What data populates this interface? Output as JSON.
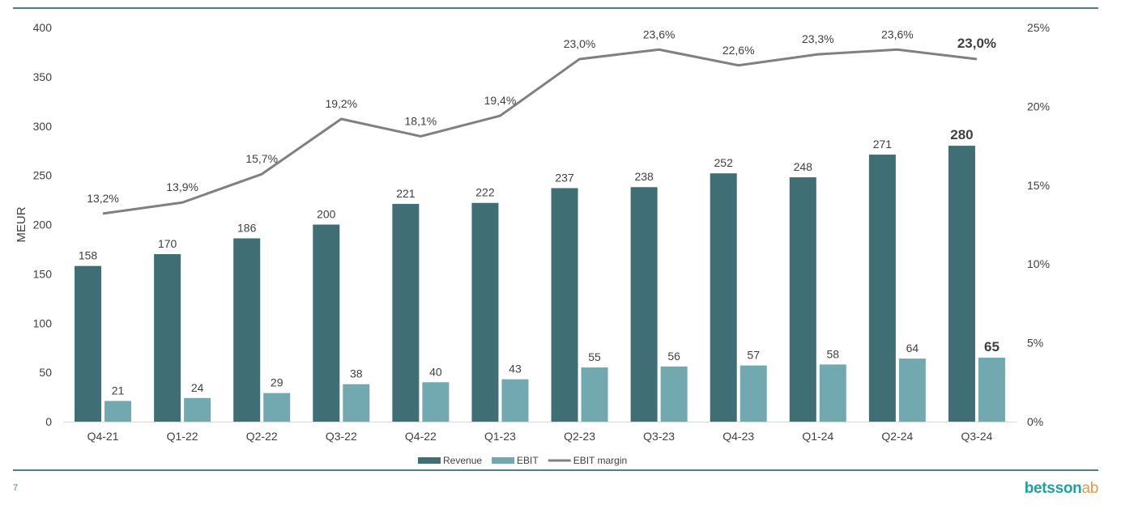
{
  "colors": {
    "revenue": "#3f6e74",
    "ebit": "#72a9b0",
    "margin": "#808080",
    "rule": "#4f7f85",
    "text": "#404040"
  },
  "page": {
    "number": "7"
  },
  "logo": {
    "word": "betsson",
    "suffix": "ab"
  },
  "chart_data": {
    "type": "bar",
    "categories": [
      "Q4-21",
      "Q1-22",
      "Q2-22",
      "Q3-22",
      "Q4-22",
      "Q1-23",
      "Q2-23",
      "Q3-23",
      "Q4-23",
      "Q1-24",
      "Q2-24",
      "Q3-24"
    ],
    "series": [
      {
        "name": "Revenue",
        "type": "bar",
        "axis": "left",
        "values": [
          158,
          170,
          186,
          200,
          221,
          222,
          237,
          238,
          252,
          248,
          271,
          280
        ],
        "labels": [
          "158",
          "170",
          "186",
          "200",
          "221",
          "222",
          "237",
          "238",
          "252",
          "248",
          "271",
          "280"
        ]
      },
      {
        "name": "EBIT",
        "type": "bar",
        "axis": "left",
        "values": [
          21,
          24,
          29,
          38,
          40,
          43,
          55,
          56,
          57,
          58,
          64,
          65
        ],
        "labels": [
          "21",
          "24",
          "29",
          "38",
          "40",
          "43",
          "55",
          "56",
          "57",
          "58",
          "64",
          "65"
        ]
      },
      {
        "name": "EBIT margin",
        "type": "line",
        "axis": "right",
        "values": [
          13.2,
          13.9,
          15.7,
          19.2,
          18.1,
          19.4,
          23.0,
          23.6,
          22.6,
          23.3,
          23.6,
          23.0
        ],
        "labels": [
          "13,2%",
          "13,9%",
          "15,7%",
          "19,2%",
          "18,1%",
          "19,4%",
          "23,0%",
          "23,6%",
          "22,6%",
          "23,3%",
          "23,6%",
          "23,0%"
        ]
      }
    ],
    "ylabel": "MEUR",
    "ylim": [
      0,
      400
    ],
    "yticks": [
      "0",
      "50",
      "100",
      "150",
      "200",
      "250",
      "300",
      "350",
      "400"
    ],
    "y2lim": [
      0,
      25
    ],
    "y2ticks": [
      "0%",
      "5%",
      "10%",
      "15%",
      "20%",
      "25%"
    ],
    "grid": false,
    "legend": "bottom",
    "highlight_last": true
  }
}
